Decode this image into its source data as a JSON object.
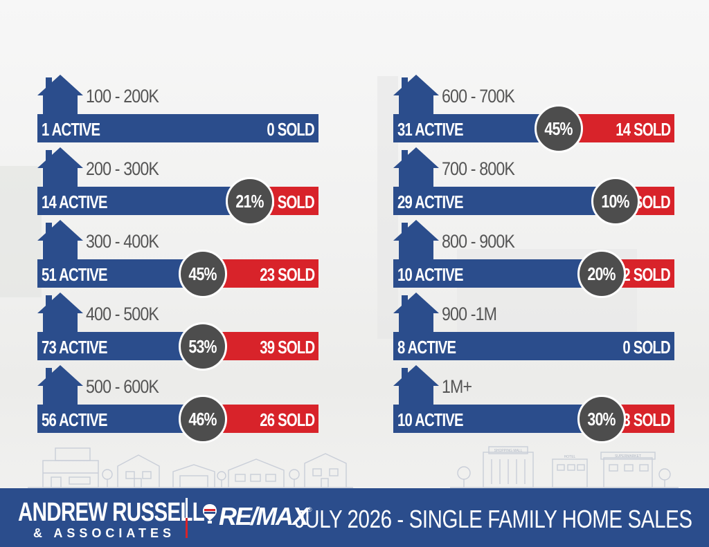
{
  "colors": {
    "blue": "#2b4d8c",
    "red": "#d8232a",
    "circle": "#4d4d4d",
    "range_text": "#555555"
  },
  "rows": [
    {
      "range": "100 - 200K",
      "active": "1 ACTIVE",
      "sold": "0 SOLD",
      "pct": "",
      "sold_fraction": 0
    },
    {
      "range": "200 - 300K",
      "active": "14 ACTIVE",
      "sold": "3 SOLD",
      "pct": "21%",
      "sold_fraction": 0.21
    },
    {
      "range": "300 - 400K",
      "active": "51 ACTIVE",
      "sold": "23 SOLD",
      "pct": "45%",
      "sold_fraction": 0.45
    },
    {
      "range": "400 - 500K",
      "active": "73 ACTIVE",
      "sold": "39 SOLD",
      "pct": "53%",
      "sold_fraction": 0.53
    },
    {
      "range": "500 - 600K",
      "active": "56 ACTIVE",
      "sold": "26 SOLD",
      "pct": "46%",
      "sold_fraction": 0.46
    },
    {
      "range": "600 - 700K",
      "active": "31 ACTIVE",
      "sold": "14 SOLD",
      "pct": "45%",
      "sold_fraction": 0.45
    },
    {
      "range": "700 - 800K",
      "active": "29 ACTIVE",
      "sold": "3 SOLD",
      "pct": "10%",
      "sold_fraction": 0.1
    },
    {
      "range": "800 - 900K",
      "active": "10 ACTIVE",
      "sold": "2 SOLD",
      "pct": "20%",
      "sold_fraction": 0.2
    },
    {
      "range": "900 -1M",
      "active": "8 ACTIVE",
      "sold": "0 SOLD",
      "pct": "",
      "sold_fraction": 0
    },
    {
      "range": "1M+",
      "active": "10 ACTIVE",
      "sold": "3 SOLD",
      "pct": "30%",
      "sold_fraction": 0.3
    }
  ],
  "footer": {
    "brand_name": "ANDREW RUSSELL",
    "brand_sub": "& ASSOCIATES",
    "remax_word": "RE/MAX",
    "remax_reg": "®",
    "title": "JULY 2026 -  SINGLE FAMILY HOME SALES"
  },
  "skyline_signs": {
    "mall": "SHOPPING MALL",
    "hotel": "HOTEL",
    "supermarket": "SUPERMARKET"
  }
}
